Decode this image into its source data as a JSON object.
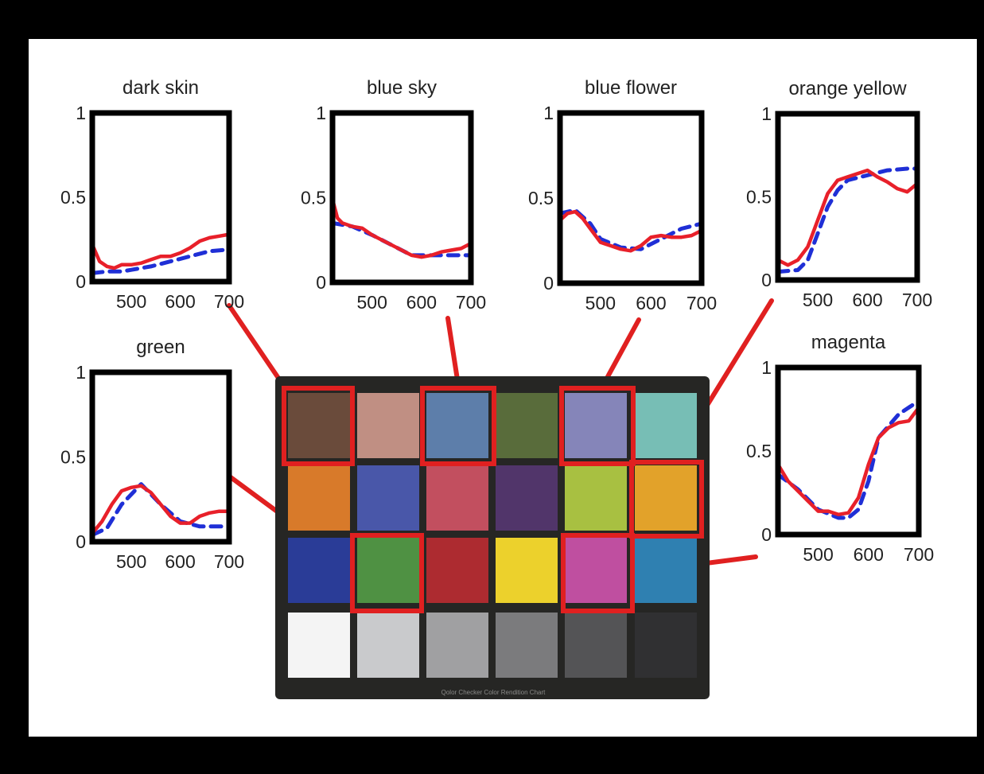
{
  "figure": {
    "background": "#ffffff",
    "frame": "#000000",
    "measured_color": "#e8202a",
    "reconstructed_color": "#1f2fd6",
    "callout_color": "#e02020",
    "chart_caption": "Qolor Checker Color Rendition Chart"
  },
  "chart_data": [
    {
      "type": "line",
      "title": "dark skin",
      "xlim": [
        420,
        700
      ],
      "ylim": [
        0,
        1
      ],
      "xticks": [
        "500",
        "600",
        "700"
      ],
      "yticks": [
        "0",
        "0.5",
        "1"
      ],
      "series": [
        {
          "style": "solid",
          "x": [
            420,
            435,
            450,
            465,
            480,
            500,
            520,
            540,
            560,
            580,
            600,
            620,
            640,
            660,
            680,
            700
          ],
          "y": [
            0.22,
            0.12,
            0.09,
            0.08,
            0.1,
            0.1,
            0.11,
            0.13,
            0.15,
            0.15,
            0.17,
            0.2,
            0.24,
            0.26,
            0.27,
            0.28
          ]
        },
        {
          "style": "dashed",
          "x": [
            420,
            450,
            480,
            500,
            540,
            580,
            620,
            660,
            700
          ],
          "y": [
            0.05,
            0.06,
            0.06,
            0.07,
            0.09,
            0.12,
            0.15,
            0.18,
            0.19
          ]
        }
      ]
    },
    {
      "type": "line",
      "title": "blue sky",
      "xlim": [
        420,
        700
      ],
      "ylim": [
        0,
        1
      ],
      "xticks": [
        "500",
        "600",
        "700"
      ],
      "yticks": [
        "0",
        "0.5",
        "1"
      ],
      "series": [
        {
          "style": "solid",
          "x": [
            420,
            430,
            440,
            460,
            480,
            500,
            520,
            540,
            560,
            580,
            600,
            620,
            640,
            660,
            680,
            700
          ],
          "y": [
            0.49,
            0.38,
            0.35,
            0.33,
            0.32,
            0.28,
            0.25,
            0.22,
            0.19,
            0.16,
            0.15,
            0.16,
            0.18,
            0.19,
            0.2,
            0.23
          ]
        },
        {
          "style": "dashed",
          "x": [
            420,
            460,
            500,
            540,
            580,
            620,
            660,
            700
          ],
          "y": [
            0.35,
            0.33,
            0.28,
            0.22,
            0.16,
            0.16,
            0.16,
            0.16
          ]
        }
      ]
    },
    {
      "type": "line",
      "title": "blue flower",
      "xlim": [
        420,
        700
      ],
      "ylim": [
        0,
        1
      ],
      "xticks": [
        "500",
        "600",
        "700"
      ],
      "yticks": [
        "0",
        "0.5",
        "1"
      ],
      "series": [
        {
          "style": "solid",
          "x": [
            420,
            435,
            450,
            465,
            480,
            500,
            520,
            540,
            560,
            580,
            600,
            620,
            640,
            660,
            680,
            700
          ],
          "y": [
            0.37,
            0.41,
            0.42,
            0.38,
            0.32,
            0.24,
            0.22,
            0.2,
            0.19,
            0.22,
            0.27,
            0.28,
            0.27,
            0.27,
            0.28,
            0.31
          ]
        },
        {
          "style": "dashed",
          "x": [
            420,
            450,
            480,
            500,
            540,
            580,
            620,
            660,
            700
          ],
          "y": [
            0.41,
            0.43,
            0.35,
            0.26,
            0.21,
            0.2,
            0.26,
            0.32,
            0.35
          ]
        }
      ]
    },
    {
      "type": "line",
      "title": "orange yellow",
      "xlim": [
        420,
        700
      ],
      "ylim": [
        0,
        1
      ],
      "xticks": [
        "500",
        "600",
        "700"
      ],
      "yticks": [
        "0",
        "0.5",
        "1"
      ],
      "series": [
        {
          "style": "solid",
          "x": [
            420,
            440,
            460,
            480,
            500,
            520,
            540,
            560,
            580,
            600,
            620,
            640,
            660,
            680,
            700
          ],
          "y": [
            0.12,
            0.09,
            0.12,
            0.2,
            0.36,
            0.52,
            0.6,
            0.62,
            0.64,
            0.66,
            0.62,
            0.59,
            0.55,
            0.53,
            0.58
          ]
        },
        {
          "style": "dashed",
          "x": [
            420,
            460,
            480,
            500,
            520,
            540,
            560,
            600,
            640,
            680,
            700
          ],
          "y": [
            0.05,
            0.06,
            0.12,
            0.28,
            0.44,
            0.54,
            0.6,
            0.63,
            0.66,
            0.67,
            0.67
          ]
        }
      ]
    },
    {
      "type": "line",
      "title": "green",
      "xlim": [
        420,
        700
      ],
      "ylim": [
        0,
        1
      ],
      "xticks": [
        "500",
        "600",
        "700"
      ],
      "yticks": [
        "0",
        "0.5",
        "1"
      ],
      "series": [
        {
          "style": "solid",
          "x": [
            420,
            440,
            460,
            480,
            500,
            520,
            540,
            560,
            580,
            600,
            620,
            640,
            660,
            680,
            700
          ],
          "y": [
            0.05,
            0.12,
            0.22,
            0.3,
            0.32,
            0.33,
            0.29,
            0.22,
            0.15,
            0.11,
            0.11,
            0.15,
            0.17,
            0.18,
            0.18
          ]
        },
        {
          "style": "dashed",
          "x": [
            420,
            450,
            480,
            520,
            560,
            600,
            640,
            680,
            700
          ],
          "y": [
            0.04,
            0.08,
            0.22,
            0.34,
            0.22,
            0.12,
            0.09,
            0.09,
            0.09
          ]
        }
      ]
    },
    {
      "type": "line",
      "title": "magenta",
      "xlim": [
        420,
        700
      ],
      "ylim": [
        0,
        1
      ],
      "xticks": [
        "500",
        "600",
        "700"
      ],
      "yticks": [
        "0",
        "0.5",
        "1"
      ],
      "series": [
        {
          "style": "solid",
          "x": [
            420,
            440,
            460,
            480,
            500,
            520,
            540,
            560,
            580,
            600,
            620,
            640,
            660,
            680,
            700
          ],
          "y": [
            0.42,
            0.32,
            0.26,
            0.2,
            0.14,
            0.14,
            0.12,
            0.13,
            0.22,
            0.42,
            0.58,
            0.64,
            0.67,
            0.68,
            0.76
          ]
        },
        {
          "style": "dashed",
          "x": [
            420,
            460,
            500,
            540,
            560,
            580,
            600,
            620,
            660,
            700
          ],
          "y": [
            0.36,
            0.27,
            0.15,
            0.1,
            0.1,
            0.15,
            0.32,
            0.58,
            0.72,
            0.8
          ]
        }
      ]
    }
  ],
  "checker": {
    "rows": [
      [
        "#6a4b3b",
        "#c08f83",
        "#5d7eaa",
        "#596c3b",
        "#8585b9",
        "#77beb5"
      ],
      [
        "#d87a2a",
        "#4957a9",
        "#c24f5f",
        "#51356a",
        "#a8c041",
        "#e2a22a"
      ],
      [
        "#2a3c97",
        "#4f9143",
        "#ad2b30",
        "#ecd12c",
        "#bf4fa0",
        "#2f80b1"
      ],
      [
        "#f4f4f4",
        "#c9cacc",
        "#a0a0a2",
        "#7b7b7d",
        "#545456",
        "#303032"
      ]
    ],
    "highlighted": [
      "dark skin",
      "blue sky",
      "blue flower",
      "orange yellow",
      "green",
      "magenta"
    ]
  }
}
